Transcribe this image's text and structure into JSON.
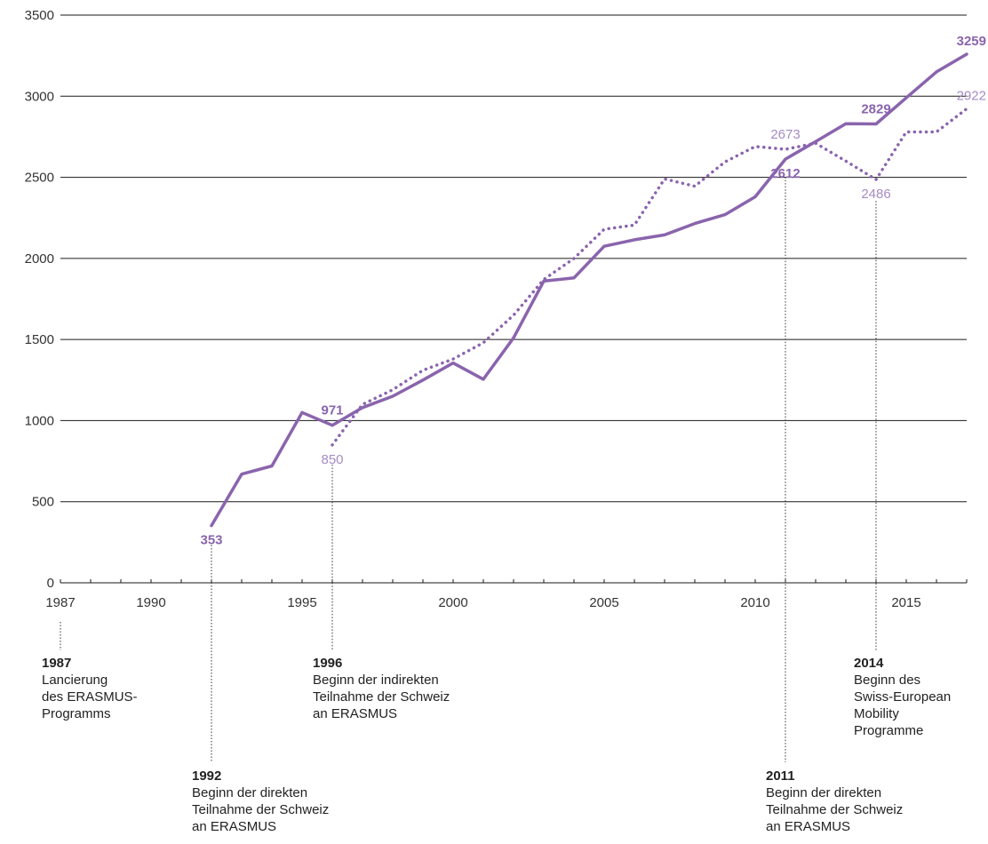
{
  "chart_data": {
    "type": "line",
    "ylim": [
      0,
      3500
    ],
    "xlim": [
      1987,
      2017
    ],
    "yticks": [
      0,
      500,
      1000,
      1500,
      2000,
      2500,
      3000,
      3500
    ],
    "xtick_labels": [
      1987,
      1990,
      1995,
      2000,
      2005,
      2010,
      2015
    ],
    "grid": true,
    "series": [
      {
        "style": "solid",
        "color": "#8a64ad",
        "x": [
          1992,
          1993,
          1994,
          1995,
          1996,
          1997,
          1998,
          1999,
          2000,
          2001,
          2002,
          2003,
          2004,
          2005,
          2006,
          2007,
          2008,
          2009,
          2010,
          2011,
          2012,
          2013,
          2014,
          2015,
          2016,
          2017
        ],
        "y": [
          353,
          670,
          720,
          1050,
          971,
          1080,
          1150,
          1250,
          1355,
          1255,
          1510,
          1860,
          1880,
          2075,
          2115,
          2145,
          2215,
          2270,
          2380,
          2612,
          2720,
          2830,
          2829,
          2990,
          3150,
          3259
        ]
      },
      {
        "style": "dotted",
        "color": "#8a64ad",
        "x": [
          1996,
          1997,
          1998,
          1999,
          2000,
          2001,
          2002,
          2003,
          2004,
          2005,
          2006,
          2007,
          2008,
          2009,
          2010,
          2011,
          2012,
          2013,
          2014,
          2015,
          2016,
          2017
        ],
        "y": [
          850,
          1100,
          1190,
          1310,
          1380,
          1480,
          1650,
          1870,
          2000,
          2180,
          2205,
          2490,
          2445,
          2595,
          2690,
          2673,
          2710,
          2600,
          2486,
          2780,
          2780,
          2922
        ]
      }
    ],
    "data_labels": [
      {
        "series": 0,
        "x": 1992,
        "y": 353,
        "text": "353",
        "bold": true,
        "pos": "below"
      },
      {
        "series": 0,
        "x": 1996,
        "y": 971,
        "text": "971",
        "bold": true,
        "pos": "above"
      },
      {
        "series": 1,
        "x": 1996,
        "y": 850,
        "text": "850",
        "bold": false,
        "pos": "below"
      },
      {
        "series": 0,
        "x": 2011,
        "y": 2612,
        "text": "2612",
        "bold": true,
        "pos": "below"
      },
      {
        "series": 1,
        "x": 2011,
        "y": 2673,
        "text": "2673",
        "bold": false,
        "pos": "above"
      },
      {
        "series": 0,
        "x": 2014,
        "y": 2829,
        "text": "2829",
        "bold": true,
        "pos": "above"
      },
      {
        "series": 1,
        "x": 2014,
        "y": 2486,
        "text": "2486",
        "bold": false,
        "pos": "below"
      },
      {
        "series": 0,
        "x": 2017,
        "y": 3259,
        "text": "3259",
        "bold": true,
        "pos": "above-left"
      },
      {
        "series": 1,
        "x": 2017,
        "y": 2922,
        "text": "2922",
        "bold": false,
        "pos": "above-left"
      }
    ],
    "annotations": [
      {
        "year": "1987",
        "x": 1987,
        "lines": [
          "Lancierung",
          "des ERASMUS-",
          "Programms"
        ]
      },
      {
        "year": "1992",
        "x": 1992,
        "lines": [
          "Beginn der direkten",
          "Teilnahme der Schweiz",
          "an ERASMUS"
        ]
      },
      {
        "year": "1996",
        "x": 1996,
        "lines": [
          "Beginn der indirekten",
          "Teilnahme der Schweiz",
          "an ERASMUS"
        ]
      },
      {
        "year": "2011",
        "x": 2011,
        "lines": [
          "Beginn der direkten",
          "Teilnahme der Schweiz",
          "an ERASMUS"
        ]
      },
      {
        "year": "2014",
        "x": 2014,
        "lines": [
          "Beginn des",
          "Swiss-European",
          "Mobility",
          "Programme"
        ]
      }
    ]
  }
}
